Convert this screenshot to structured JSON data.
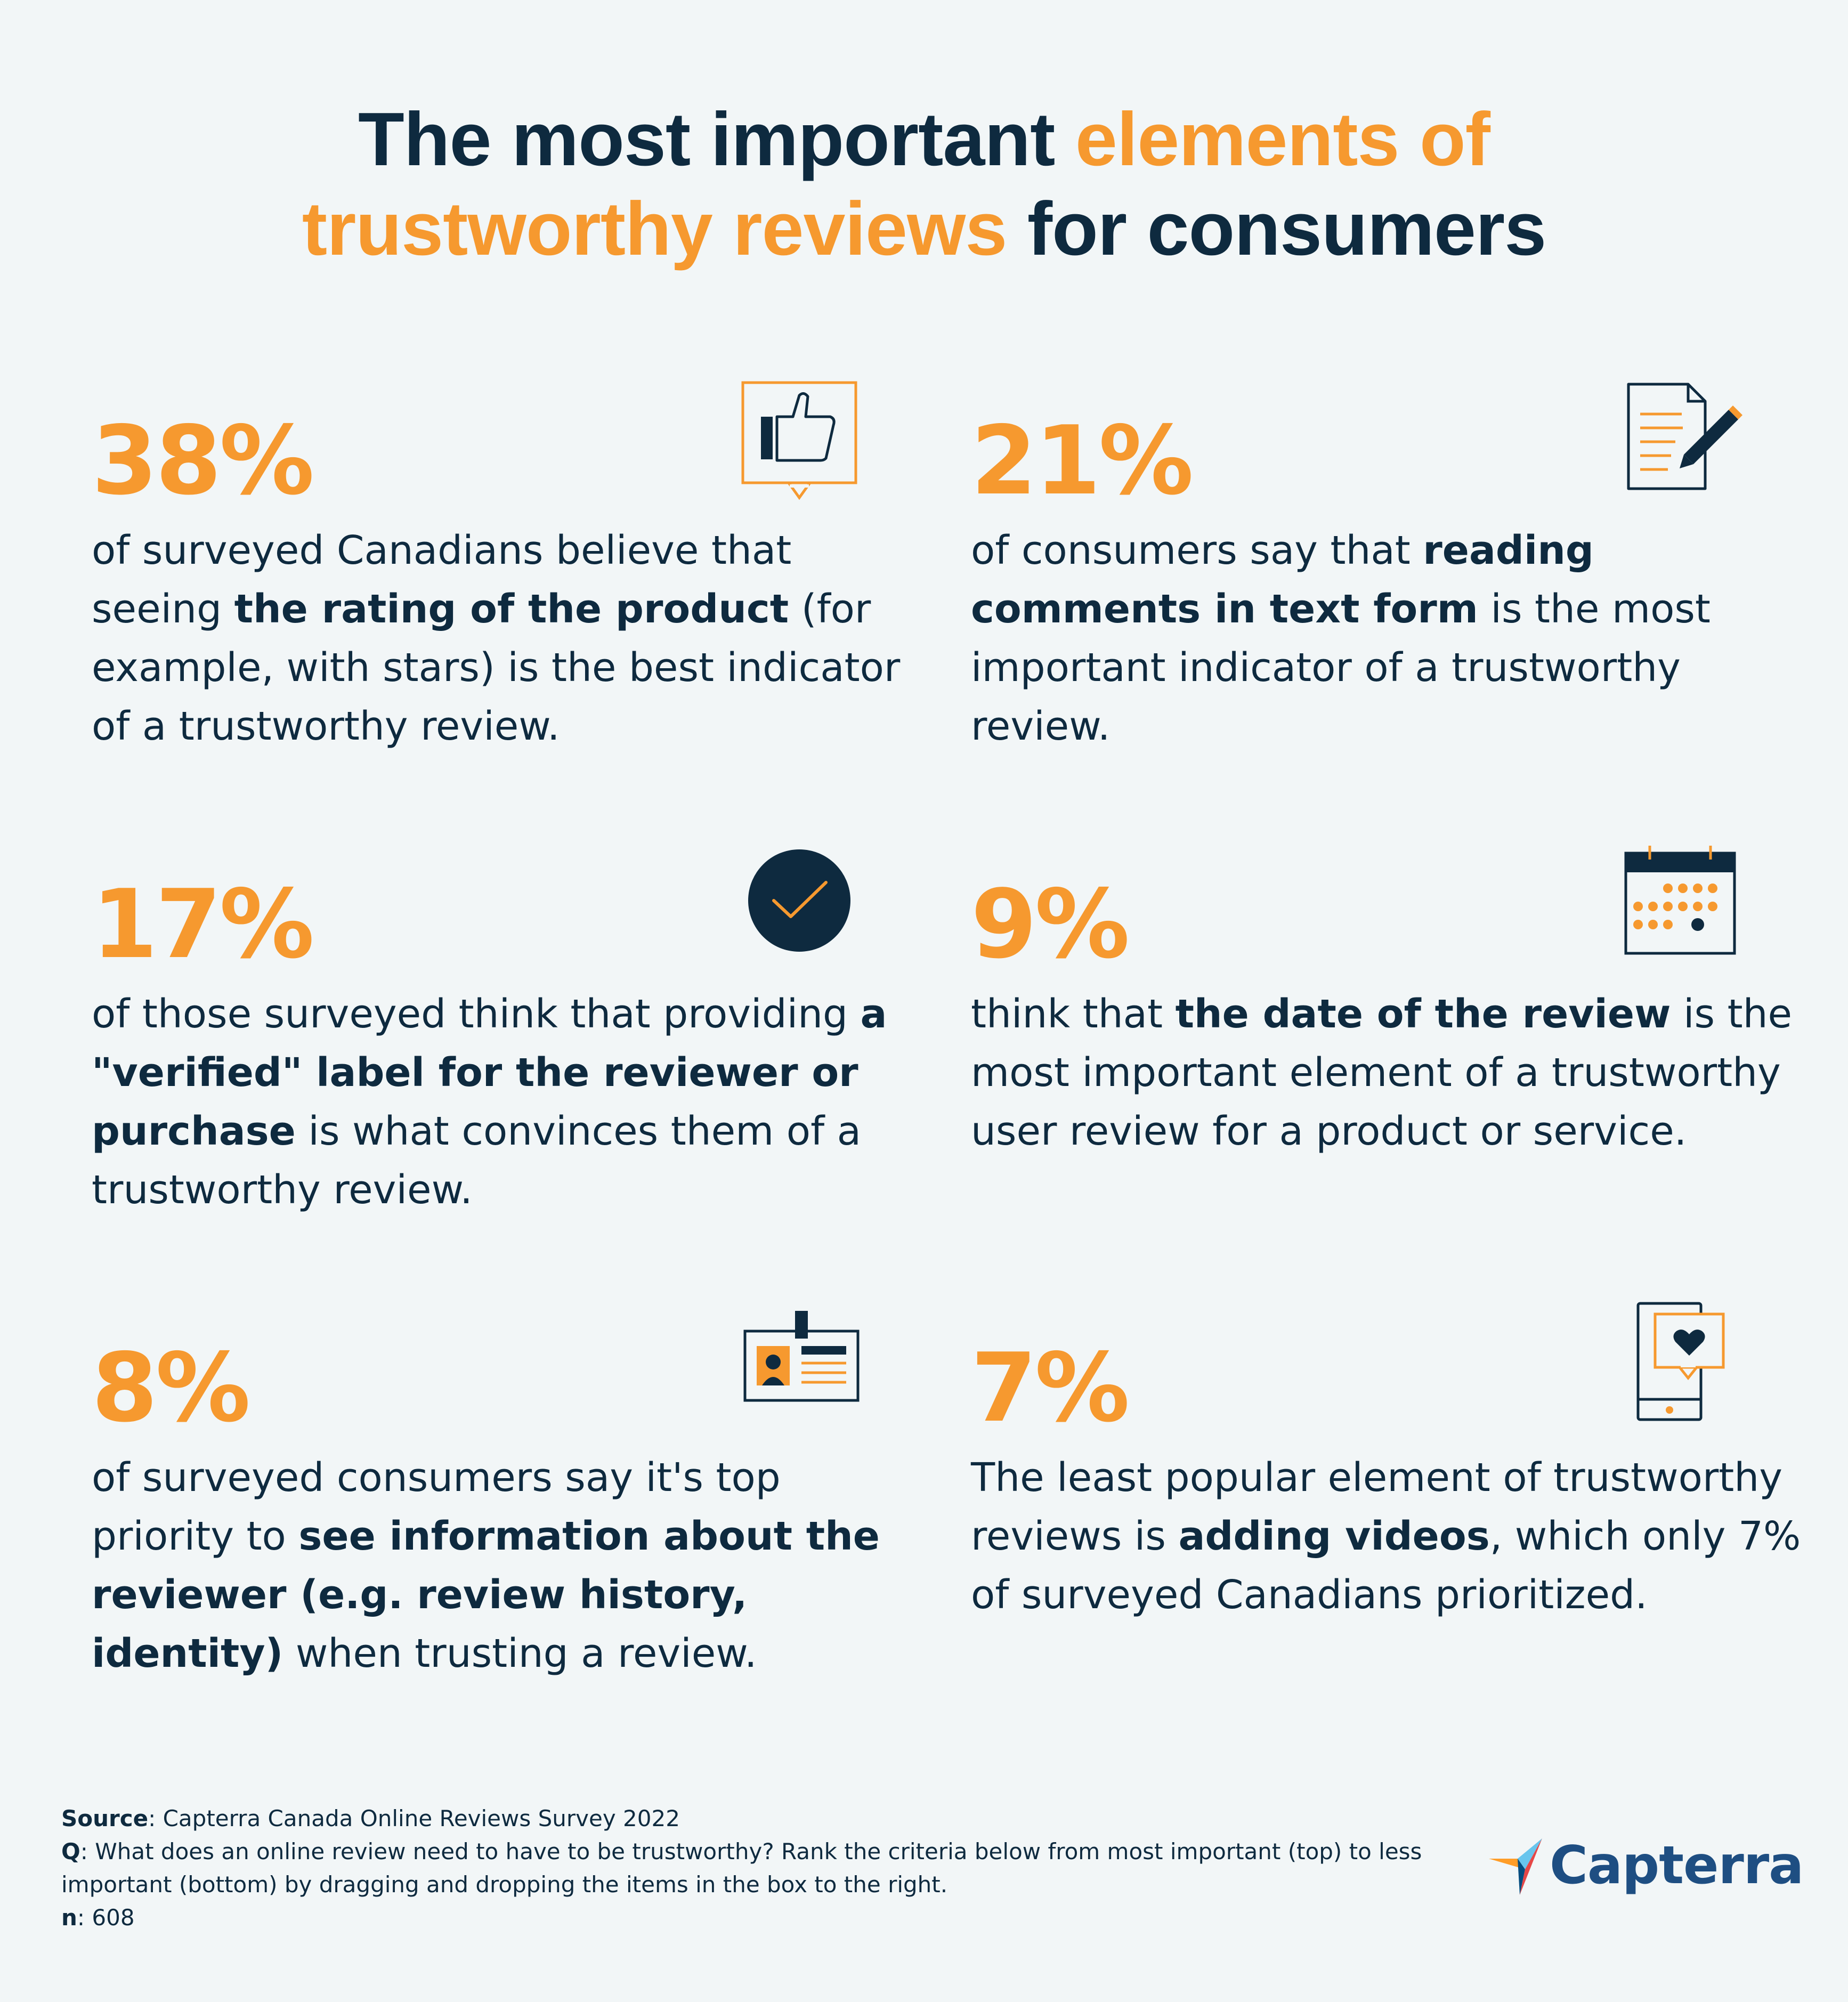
{
  "title": {
    "part1": "The most important ",
    "part2": "elements of",
    "part3": "trustworthy reviews",
    "part4": " for consumers"
  },
  "stats": [
    {
      "percent": "38%",
      "icon": "thumbs-up-speech-icon",
      "text_before": "of surveyed Canadians believe that seeing ",
      "text_bold": "the rating of the product",
      "text_after": " (for example, with stars) is the best indicator of a trustworthy review."
    },
    {
      "percent": "21%",
      "icon": "document-pencil-icon",
      "text_before": "of consumers say that ",
      "text_bold": "reading comments in text form",
      "text_after": " is the most important indicator of a trustworthy review."
    },
    {
      "percent": "17%",
      "icon": "checkmark-circle-icon",
      "text_before": "of those surveyed think that providing ",
      "text_bold": "a \"verified\" label for the reviewer or purchase",
      "text_after": " is what convinces them of a trustworthy review."
    },
    {
      "percent": "9%",
      "icon": "calendar-icon",
      "text_before": "think that ",
      "text_bold": "the date of the review",
      "text_after": " is the most important element of a trustworthy user review for a product or service."
    },
    {
      "percent": "8%",
      "icon": "id-badge-icon",
      "text_before": "of surveyed consumers say it's top priority to ",
      "text_bold": "see information about the reviewer (e.g. review history, identity)",
      "text_after": " when trusting a review."
    },
    {
      "percent": "7%",
      "icon": "phone-heart-icon",
      "text_before": "The least popular element of trustworthy reviews is ",
      "text_bold": "adding videos",
      "text_after": ", which only 7% of surveyed Canadians prioritized."
    }
  ],
  "footer": {
    "source_label": "Source",
    "source_text": ": Capterra Canada Online Reviews Survey 2022",
    "q_label": "Q",
    "q_text": ": What does an online review need to have to be trustworthy? Rank the criteria below from most important (top) to less important (bottom) by dragging and dropping the items in the box to the right.",
    "n_label": "n",
    "n_text": ": 608"
  },
  "logo": {
    "text": "Capterra",
    "icon": "capterra-logo-icon"
  },
  "colors": {
    "accent": "#f6992f",
    "dark": "#0e2a3f",
    "background": "#f2f6f7",
    "brand": "#1e4e82"
  }
}
